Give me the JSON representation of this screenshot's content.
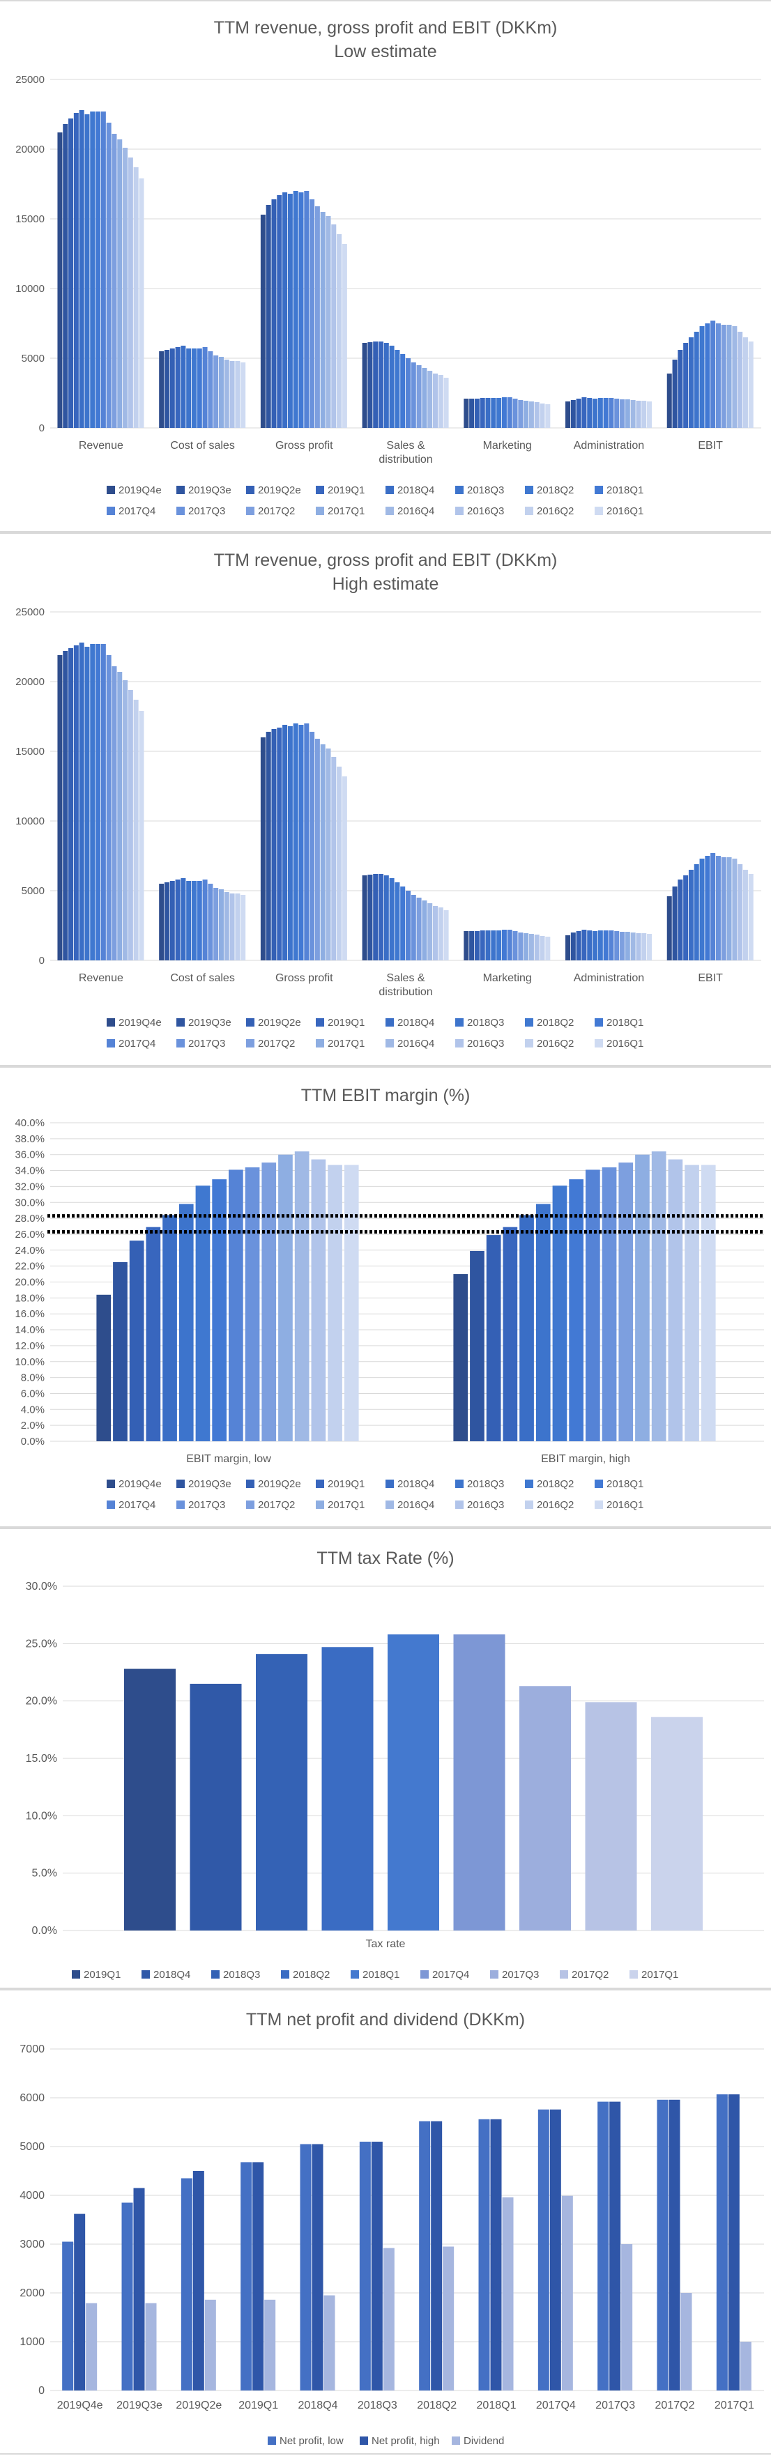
{
  "colors": {
    "palette16": [
      "#2e4d8c",
      "#2f55a0",
      "#3460b5",
      "#3866be",
      "#3a6ec6",
      "#3d74cc",
      "#3f78d0",
      "#4279d4",
      "#5583d6",
      "#6a92dc",
      "#7d9fdf",
      "#8eaee2",
      "#a0b9e5",
      "#b1c4ea",
      "#c2d1ee",
      "#cfdbf2"
    ],
    "tax9": [
      "#2e4d8c",
      "#3059a8",
      "#3462b5",
      "#3a6cc3",
      "#4479cf",
      "#7d97d5",
      "#9caedd",
      "#b7c3e5",
      "#cad3ec"
    ],
    "netLow": "#4470c4",
    "netHigh": "#2f56a8",
    "dividend": "#a6b6df",
    "grid": "#d9d9d9",
    "text": "#595959"
  },
  "legend16": [
    "2019Q4e",
    "2019Q3e",
    "2019Q2e",
    "2019Q1",
    "2018Q4",
    "2018Q3",
    "2018Q2",
    "2018Q1",
    "2017Q4",
    "2017Q3",
    "2017Q2",
    "2017Q1",
    "2016Q4",
    "2016Q3",
    "2016Q2",
    "2016Q1"
  ],
  "chart_data": [
    {
      "type": "bar",
      "title": "TTM revenue, gross profit and EBIT (DKKm)",
      "subtitle": "Low estimate",
      "categories": [
        "Revenue",
        "Cost of sales",
        "Gross profit",
        "Sales & distribution",
        "Marketing",
        "Administration",
        "EBIT"
      ],
      "ylim": [
        0,
        25000
      ],
      "yticks": [
        0,
        5000,
        10000,
        15000,
        20000,
        25000
      ],
      "grid": true,
      "legend_position": "bottom",
      "series": [
        {
          "name": "2019Q4e",
          "values": [
            21200,
            5500,
            15300,
            6100,
            2100,
            1900,
            3900
          ]
        },
        {
          "name": "2019Q3e",
          "values": [
            21800,
            5600,
            16000,
            6150,
            2100,
            2000,
            4900
          ]
        },
        {
          "name": "2019Q2e",
          "values": [
            22200,
            5700,
            16400,
            6200,
            2100,
            2100,
            5600
          ]
        },
        {
          "name": "2019Q1",
          "values": [
            22600,
            5800,
            16700,
            6200,
            2150,
            2200,
            6100
          ]
        },
        {
          "name": "2018Q4",
          "values": [
            22800,
            5900,
            16900,
            6100,
            2150,
            2150,
            6500
          ]
        },
        {
          "name": "2018Q3",
          "values": [
            22500,
            5700,
            16800,
            5900,
            2150,
            2100,
            6900
          ]
        },
        {
          "name": "2018Q2",
          "values": [
            22700,
            5700,
            17000,
            5600,
            2150,
            2150,
            7300
          ]
        },
        {
          "name": "2018Q1",
          "values": [
            22700,
            5700,
            16900,
            5300,
            2200,
            2150,
            7500
          ]
        },
        {
          "name": "2017Q4",
          "values": [
            22700,
            5800,
            17000,
            5000,
            2200,
            2150,
            7700
          ]
        },
        {
          "name": "2017Q3",
          "values": [
            21900,
            5500,
            16400,
            4700,
            2100,
            2100,
            7500
          ]
        },
        {
          "name": "2017Q2",
          "values": [
            21100,
            5200,
            15900,
            4500,
            2000,
            2050,
            7400
          ]
        },
        {
          "name": "2017Q1",
          "values": [
            20700,
            5100,
            15500,
            4300,
            1950,
            2050,
            7400
          ]
        },
        {
          "name": "2016Q4",
          "values": [
            20100,
            4900,
            15200,
            4100,
            1900,
            2000,
            7300
          ]
        },
        {
          "name": "2016Q3",
          "values": [
            19400,
            4800,
            14600,
            3900,
            1850,
            1950,
            6900
          ]
        },
        {
          "name": "2016Q2",
          "values": [
            18700,
            4800,
            13900,
            3800,
            1750,
            1950,
            6500
          ]
        },
        {
          "name": "2016Q1",
          "values": [
            17900,
            4700,
            13200,
            3600,
            1700,
            1900,
            6200
          ]
        }
      ]
    },
    {
      "type": "bar",
      "title": "TTM revenue, gross profit and EBIT (DKKm)",
      "subtitle": "High estimate",
      "categories": [
        "Revenue",
        "Cost of sales",
        "Gross profit",
        "Sales & distribution",
        "Marketing",
        "Administration",
        "EBIT"
      ],
      "ylim": [
        0,
        25000
      ],
      "yticks": [
        0,
        5000,
        10000,
        15000,
        20000,
        25000
      ],
      "grid": true,
      "legend_position": "bottom",
      "series": [
        {
          "name": "2019Q4e",
          "values": [
            21900,
            5500,
            16000,
            6100,
            2100,
            1800,
            4600
          ]
        },
        {
          "name": "2019Q3e",
          "values": [
            22200,
            5600,
            16400,
            6150,
            2100,
            2000,
            5300
          ]
        },
        {
          "name": "2019Q2e",
          "values": [
            22400,
            5700,
            16600,
            6200,
            2100,
            2100,
            5800
          ]
        },
        {
          "name": "2019Q1",
          "values": [
            22600,
            5800,
            16700,
            6200,
            2150,
            2200,
            6100
          ]
        },
        {
          "name": "2018Q4",
          "values": [
            22800,
            5900,
            16900,
            6100,
            2150,
            2150,
            6500
          ]
        },
        {
          "name": "2018Q3",
          "values": [
            22500,
            5700,
            16800,
            5900,
            2150,
            2100,
            6900
          ]
        },
        {
          "name": "2018Q2",
          "values": [
            22700,
            5700,
            17000,
            5600,
            2150,
            2150,
            7300
          ]
        },
        {
          "name": "2018Q1",
          "values": [
            22700,
            5700,
            16900,
            5300,
            2200,
            2150,
            7500
          ]
        },
        {
          "name": "2017Q4",
          "values": [
            22700,
            5800,
            17000,
            5000,
            2200,
            2150,
            7700
          ]
        },
        {
          "name": "2017Q3",
          "values": [
            21900,
            5500,
            16400,
            4700,
            2100,
            2100,
            7500
          ]
        },
        {
          "name": "2017Q2",
          "values": [
            21100,
            5200,
            15900,
            4500,
            2000,
            2050,
            7400
          ]
        },
        {
          "name": "2017Q1",
          "values": [
            20700,
            5100,
            15500,
            4300,
            1950,
            2050,
            7400
          ]
        },
        {
          "name": "2016Q4",
          "values": [
            20100,
            4900,
            15200,
            4100,
            1900,
            2000,
            7300
          ]
        },
        {
          "name": "2016Q3",
          "values": [
            19400,
            4800,
            14600,
            3900,
            1850,
            1950,
            6900
          ]
        },
        {
          "name": "2016Q2",
          "values": [
            18700,
            4800,
            13900,
            3800,
            1750,
            1950,
            6500
          ]
        },
        {
          "name": "2016Q1",
          "values": [
            17900,
            4700,
            13200,
            3600,
            1700,
            1900,
            6200
          ]
        }
      ]
    },
    {
      "type": "bar",
      "title": "TTM EBIT margin (%)",
      "categories": [
        "EBIT margin, low",
        "EBIT margin, high"
      ],
      "ylim": [
        0,
        40
      ],
      "ytick_step": 2,
      "grid": true,
      "legend_position": "bottom",
      "reference_lines": [
        28.3,
        26.3
      ],
      "series": [
        {
          "name": "2019Q4e",
          "values": [
            18.4,
            21.0
          ]
        },
        {
          "name": "2019Q3e",
          "values": [
            22.5,
            23.9
          ]
        },
        {
          "name": "2019Q2e",
          "values": [
            25.2,
            25.9
          ]
        },
        {
          "name": "2019Q1",
          "values": [
            26.9,
            26.9
          ]
        },
        {
          "name": "2018Q4",
          "values": [
            28.4,
            28.4
          ]
        },
        {
          "name": "2018Q3",
          "values": [
            29.8,
            29.8
          ]
        },
        {
          "name": "2018Q2",
          "values": [
            32.1,
            32.1
          ]
        },
        {
          "name": "2018Q1",
          "values": [
            32.9,
            32.9
          ]
        },
        {
          "name": "2017Q4",
          "values": [
            34.1,
            34.1
          ]
        },
        {
          "name": "2017Q3",
          "values": [
            34.4,
            34.4
          ]
        },
        {
          "name": "2017Q2",
          "values": [
            35.0,
            35.0
          ]
        },
        {
          "name": "2017Q1",
          "values": [
            36.0,
            36.0
          ]
        },
        {
          "name": "2016Q4",
          "values": [
            36.4,
            36.4
          ]
        },
        {
          "name": "2016Q3",
          "values": [
            35.4,
            35.4
          ]
        },
        {
          "name": "2016Q2",
          "values": [
            34.7,
            34.7
          ]
        },
        {
          "name": "2016Q1",
          "values": [
            34.7,
            34.7
          ]
        }
      ]
    },
    {
      "type": "bar",
      "title": "TTM tax Rate (%)",
      "categories": [
        "Tax rate"
      ],
      "ylim": [
        0,
        30
      ],
      "yticks": [
        0,
        5,
        10,
        15,
        20,
        25,
        30
      ],
      "grid": true,
      "legend_position": "bottom",
      "series": [
        {
          "name": "2019Q1",
          "values": [
            22.8
          ]
        },
        {
          "name": "2018Q4",
          "values": [
            21.5
          ]
        },
        {
          "name": "2018Q3",
          "values": [
            24.1
          ]
        },
        {
          "name": "2018Q2",
          "values": [
            24.7
          ]
        },
        {
          "name": "2018Q1",
          "values": [
            25.8
          ]
        },
        {
          "name": "2017Q4",
          "values": [
            25.8
          ]
        },
        {
          "name": "2017Q3",
          "values": [
            21.3
          ]
        },
        {
          "name": "2017Q2",
          "values": [
            19.9
          ]
        },
        {
          "name": "2017Q1",
          "values": [
            18.6
          ]
        }
      ]
    },
    {
      "type": "bar",
      "title": "TTM net profit and dividend (DKKm)",
      "categories": [
        "2019Q4e",
        "2019Q3e",
        "2019Q2e",
        "2019Q1",
        "2018Q4",
        "2018Q3",
        "2018Q2",
        "2018Q1",
        "2017Q4",
        "2017Q3",
        "2017Q2",
        "2017Q1"
      ],
      "ylim": [
        0,
        7000
      ],
      "yticks": [
        0,
        1000,
        2000,
        3000,
        4000,
        5000,
        6000,
        7000
      ],
      "grid": true,
      "legend_position": "bottom",
      "series": [
        {
          "name": "Net profit, low",
          "values": [
            3050,
            3850,
            4350,
            4680,
            5050,
            5100,
            5520,
            5560,
            5760,
            5920,
            5960,
            6070
          ]
        },
        {
          "name": "Net profit, high",
          "values": [
            3620,
            4150,
            4500,
            4680,
            5050,
            5100,
            5520,
            5560,
            5760,
            5920,
            5960,
            6070
          ]
        },
        {
          "name": "Dividend",
          "values": [
            1790,
            1790,
            1860,
            1860,
            1950,
            2920,
            2950,
            3960,
            3990,
            3000,
            2000,
            1000
          ]
        }
      ]
    }
  ]
}
